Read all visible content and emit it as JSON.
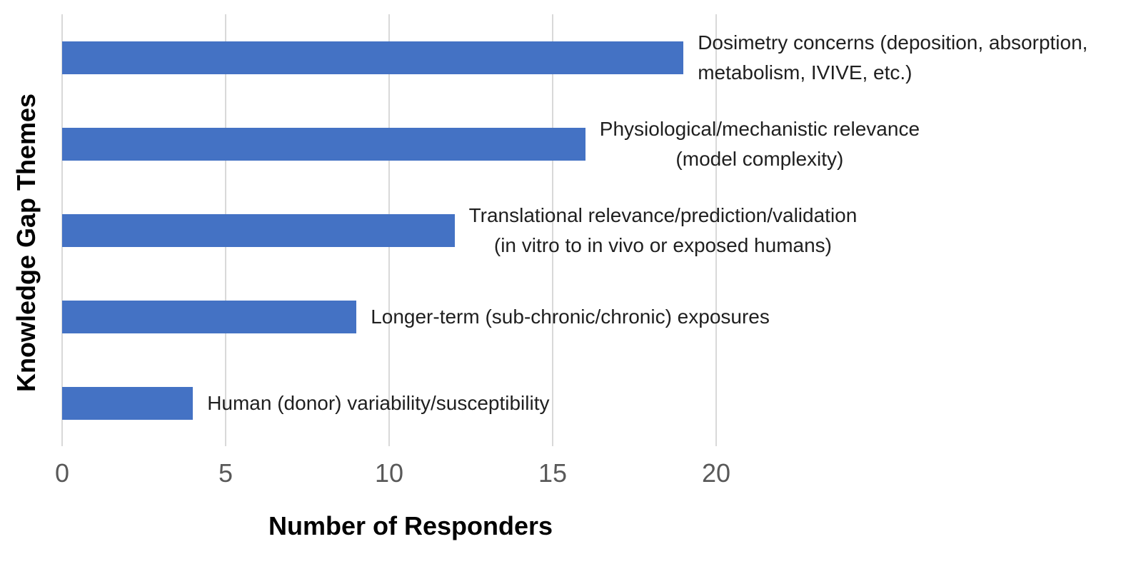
{
  "chart_data": {
    "type": "bar",
    "orientation": "horizontal",
    "title": "",
    "xlabel": "Number of Responders",
    "ylabel": "Knowledge Gap Themes",
    "xlim": [
      0,
      20
    ],
    "xtick_labels": [
      "0",
      "5",
      "10",
      "15",
      "20"
    ],
    "xtick_values": [
      0,
      5,
      10,
      15,
      20
    ],
    "grid": "vertical gridlines only",
    "legend_position": "none",
    "categories": [
      "Dosimetry concerns (deposition, absorption, metabolism, IVIVE, etc.)",
      "Physiological/mechanistic relevance (model complexity)",
      "Translational relevance/prediction/validation (in vitro to in vivo or exposed humans)",
      "Longer-term (sub-chronic/chronic) exposures",
      "Human (donor) variability/susceptibility"
    ],
    "values": [
      19,
      16,
      12,
      9,
      4
    ],
    "bars": [
      {
        "label_lines": [
          "Dosimetry concerns (deposition, absorption,",
          "metabolism, IVIVE, etc.)"
        ],
        "value": 19
      },
      {
        "label_lines": [
          "Physiological/mechanistic relevance",
          "(model complexity)"
        ],
        "value": 16
      },
      {
        "label_lines": [
          "Translational relevance/prediction/validation",
          "(in vitro to in vivo or exposed humans)"
        ],
        "value": 12
      },
      {
        "label_lines": [
          "Longer-term (sub-chronic/chronic) exposures"
        ],
        "value": 9
      },
      {
        "label_lines": [
          "Human (donor) variability/susceptibility"
        ],
        "value": 4
      }
    ],
    "colors": {
      "bar": "#4472C4",
      "gridline": "#D9D9D9",
      "tick_label": "#595959",
      "category_label": "#1F1F1F",
      "axis_title": "#000000",
      "background": "#FFFFFF"
    }
  }
}
